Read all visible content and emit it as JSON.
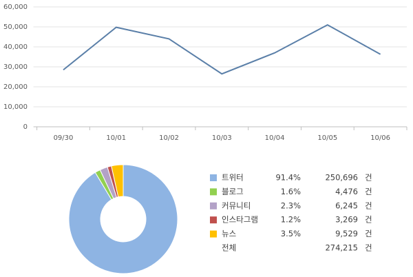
{
  "chart_data": [
    {
      "type": "line",
      "categories": [
        "09/30",
        "10/01",
        "10/02",
        "10/03",
        "10/04",
        "10/05",
        "10/06"
      ],
      "values": [
        28500,
        49800,
        44000,
        26500,
        37000,
        51000,
        36300
      ],
      "color": "#5a7fa8",
      "ylim": [
        0,
        60000
      ],
      "yticks": [
        0,
        {
          "value": 10000,
          "label": "10,000"
        },
        {
          "value": 20000,
          "label": "20,000"
        },
        {
          "value": 30000,
          "label": "30,000"
        },
        {
          "value": 40000,
          "label": "40,000"
        },
        {
          "value": 50000,
          "label": "50,000"
        },
        {
          "value": 60000,
          "label": "60,000"
        }
      ],
      "grid": true
    },
    {
      "type": "pie",
      "categories": [
        "트위터",
        "블로그",
        "커뮤니티",
        "인스타그램",
        "뉴스"
      ],
      "values": [
        91.4,
        1.6,
        2.3,
        1.2,
        3.5
      ],
      "value_labels": [
        "91.4%",
        "1.6%",
        "2.3%",
        "1.2%",
        "3.5%"
      ],
      "colors": [
        "#8eb4e3",
        "#92d050",
        "#b3a2c7",
        "#c0504d",
        "#ffc000"
      ],
      "counts": [
        "250,696",
        "4,476",
        "6,245",
        "3,269",
        "9,529"
      ],
      "unit": "건",
      "total_label": "전체",
      "total": "274,215"
    }
  ]
}
